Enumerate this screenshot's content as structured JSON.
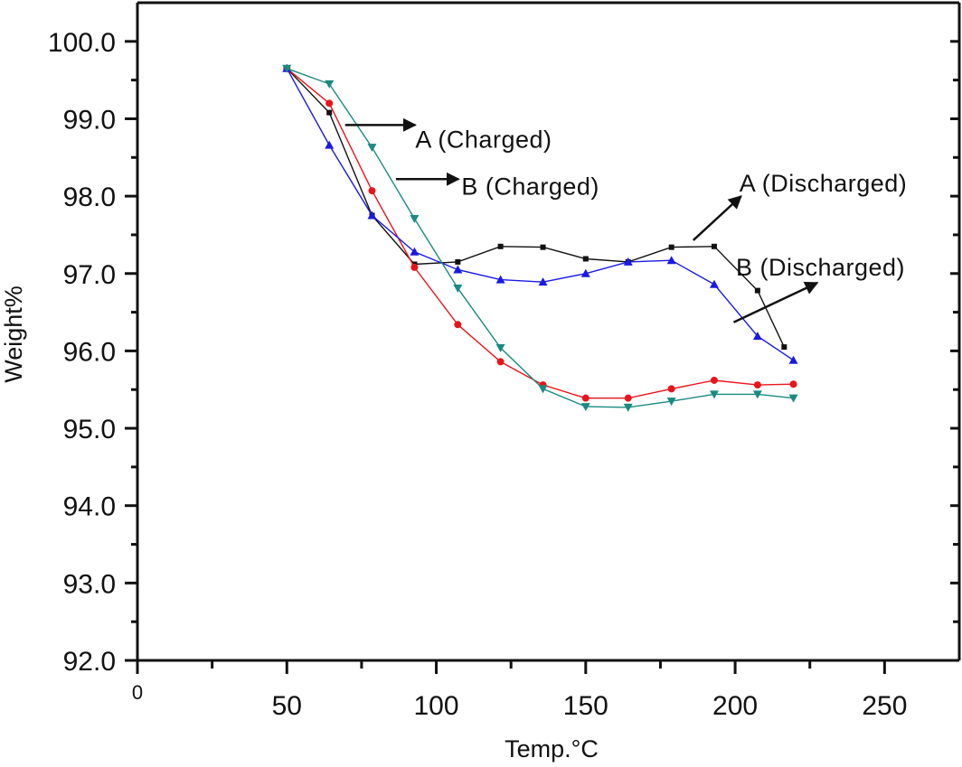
{
  "chart_data": {
    "type": "line",
    "title": "",
    "xlabel": "Temp.°C",
    "ylabel": "Weight%",
    "xlim": [
      0,
      275
    ],
    "ylim": [
      92.0,
      100.5
    ],
    "x_ticks": [
      0,
      50,
      100,
      150,
      200,
      250
    ],
    "x_tick_labels": [
      "0",
      "50",
      "100",
      "150",
      "200",
      "250"
    ],
    "x_minor_ticks": [
      25,
      75,
      125,
      175,
      225
    ],
    "y_ticks": [
      92.0,
      93.0,
      94.0,
      95.0,
      96.0,
      97.0,
      98.0,
      99.0,
      100.0
    ],
    "y_tick_labels": [
      "92.0",
      "93.0",
      "94.0",
      "95.0",
      "96.0",
      "97.0",
      "98.0",
      "99.0",
      "100.0"
    ],
    "y_minor_ticks": [
      92.5,
      93.5,
      94.5,
      95.5,
      96.5,
      97.5,
      98.5,
      99.5
    ],
    "grid": false,
    "legend": "none",
    "series": [
      {
        "name": "A (Discharged)",
        "color": "#111111",
        "marker": "square",
        "x": [
          50,
          64.2,
          78.5,
          92.7,
          107.2,
          121.5,
          135.7,
          150,
          164.2,
          178.7,
          193,
          207.5,
          216.4
        ],
        "y": [
          99.65,
          99.08,
          97.75,
          97.12,
          97.15,
          97.35,
          97.34,
          97.19,
          97.15,
          97.34,
          97.35,
          96.78,
          96.05
        ]
      },
      {
        "name": "A (Charged)",
        "color": "#e8141c",
        "marker": "circle",
        "x": [
          50,
          64.2,
          78.5,
          92.7,
          107.2,
          121.5,
          135.7,
          150,
          164.2,
          178.7,
          193,
          207.5,
          219.5
        ],
        "y": [
          99.65,
          99.2,
          98.07,
          97.08,
          96.34,
          95.86,
          95.56,
          95.39,
          95.39,
          95.51,
          95.62,
          95.56,
          95.57
        ]
      },
      {
        "name": "B (Discharged)",
        "color": "#1a1ae0",
        "marker": "triangle-up",
        "x": [
          50,
          64.2,
          78.5,
          92.7,
          107.2,
          121.5,
          135.7,
          150,
          164.2,
          178.7,
          193,
          207.5,
          219.5
        ],
        "y": [
          99.65,
          98.66,
          97.75,
          97.28,
          97.05,
          96.92,
          96.89,
          97.0,
          97.15,
          97.17,
          96.86,
          96.19,
          95.88
        ]
      },
      {
        "name": "B (Charged)",
        "color": "#1a8a80",
        "marker": "triangle-down",
        "x": [
          50,
          64.2,
          78.5,
          92.7,
          107.2,
          121.5,
          135.7,
          150,
          164.2,
          178.7,
          193,
          207.5,
          219.5
        ],
        "y": [
          99.65,
          99.45,
          98.63,
          97.71,
          96.81,
          96.04,
          95.51,
          95.28,
          95.27,
          95.35,
          95.44,
          95.44,
          95.39
        ]
      }
    ],
    "annotations": [
      {
        "text": "A (Charged)",
        "arrow_from": [
          69.5,
          98.92
        ],
        "arrow_to": [
          93,
          98.92
        ]
      },
      {
        "text": "B (Charged)",
        "arrow_from": [
          86.5,
          98.22
        ],
        "arrow_to": [
          107.5,
          98.22
        ]
      },
      {
        "text": "A (Discharged)",
        "arrow_from": [
          186,
          97.43
        ],
        "arrow_to": [
          202,
          98.0
        ]
      },
      {
        "text": "B (Discharged)",
        "arrow_from": [
          199.5,
          96.37
        ],
        "arrow_to": [
          227.5,
          96.88
        ]
      }
    ]
  }
}
